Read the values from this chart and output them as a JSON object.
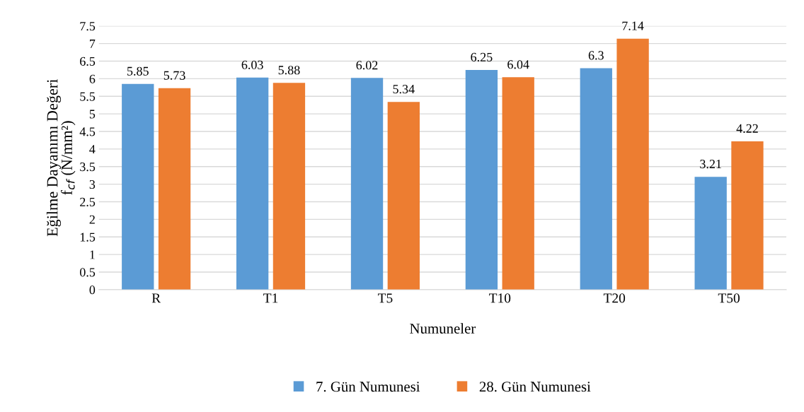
{
  "chart_data": {
    "type": "bar",
    "xlabel": "Numuneler",
    "ylabel": "Eğilme Dayanımı Değeri\nf$_{cf}$ (N/mm²)",
    "categories": [
      "R",
      "T1",
      "T5",
      "T10",
      "T20",
      "T50"
    ],
    "series": [
      {
        "name": "7. Gün Numunesi",
        "color": "#5b9bd5",
        "values": [
          5.85,
          6.03,
          6.02,
          6.25,
          6.3,
          3.21
        ]
      },
      {
        "name": "28. Gün Numunesi",
        "color": "#ed7d31",
        "values": [
          5.73,
          5.88,
          5.34,
          6.04,
          7.14,
          4.22
        ]
      }
    ],
    "ylim": [
      0,
      7.5
    ],
    "yticks": [
      0,
      0.5,
      1,
      1.5,
      2,
      2.5,
      3,
      3.5,
      4,
      4.5,
      5,
      5.5,
      6,
      6.5,
      7,
      7.5
    ],
    "grid": "y",
    "legend": "bottom",
    "data_labels": true
  }
}
